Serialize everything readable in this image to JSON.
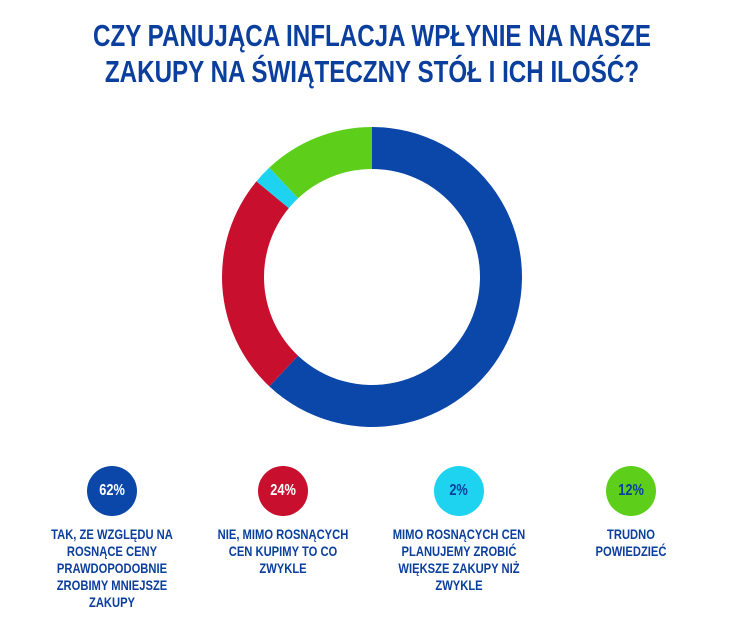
{
  "chart_data": {
    "type": "pie",
    "donut": true,
    "title_lines": [
      "CZY PANUJĄCA INFLACJA WPŁYNIE NA NASZE",
      "ZAKUPY NA ŚWIĄTECZNY STÓŁ I ICH ILOŚĆ?"
    ],
    "start": "top",
    "direction": "clockwise",
    "slices": [
      {
        "label": "TAK, ZE WZGLĘDU NA ROSNĄCE CENY PRAWDOPODOBNIE ZROBIMY MNIEJSZE ZAKUPY",
        "value": 62,
        "display": "62%",
        "color": "#0a47a9",
        "text_color": "#ffffff"
      },
      {
        "label": "NIE, MIMO ROSNĄCYCH CEN KUPIMY TO CO ZWYKLE",
        "value": 24,
        "display": "24%",
        "color": "#c8102e",
        "text_color": "#ffffff"
      },
      {
        "label": "MIMO ROSNĄCYCH CEN PLANUJEMY ZROBIĆ WIĘKSZE ZAKUPY NIŻ ZWYKLE",
        "value": 2,
        "display": "2%",
        "color": "#1ed3f0",
        "text_color": "#0b3f9e"
      },
      {
        "label": "TRUDNO POWIEDZIEĆ",
        "value": 12,
        "display": "12%",
        "color": "#5dcf1b",
        "text_color": "#0b3f9e"
      }
    ],
    "legend_position": "bottom"
  }
}
